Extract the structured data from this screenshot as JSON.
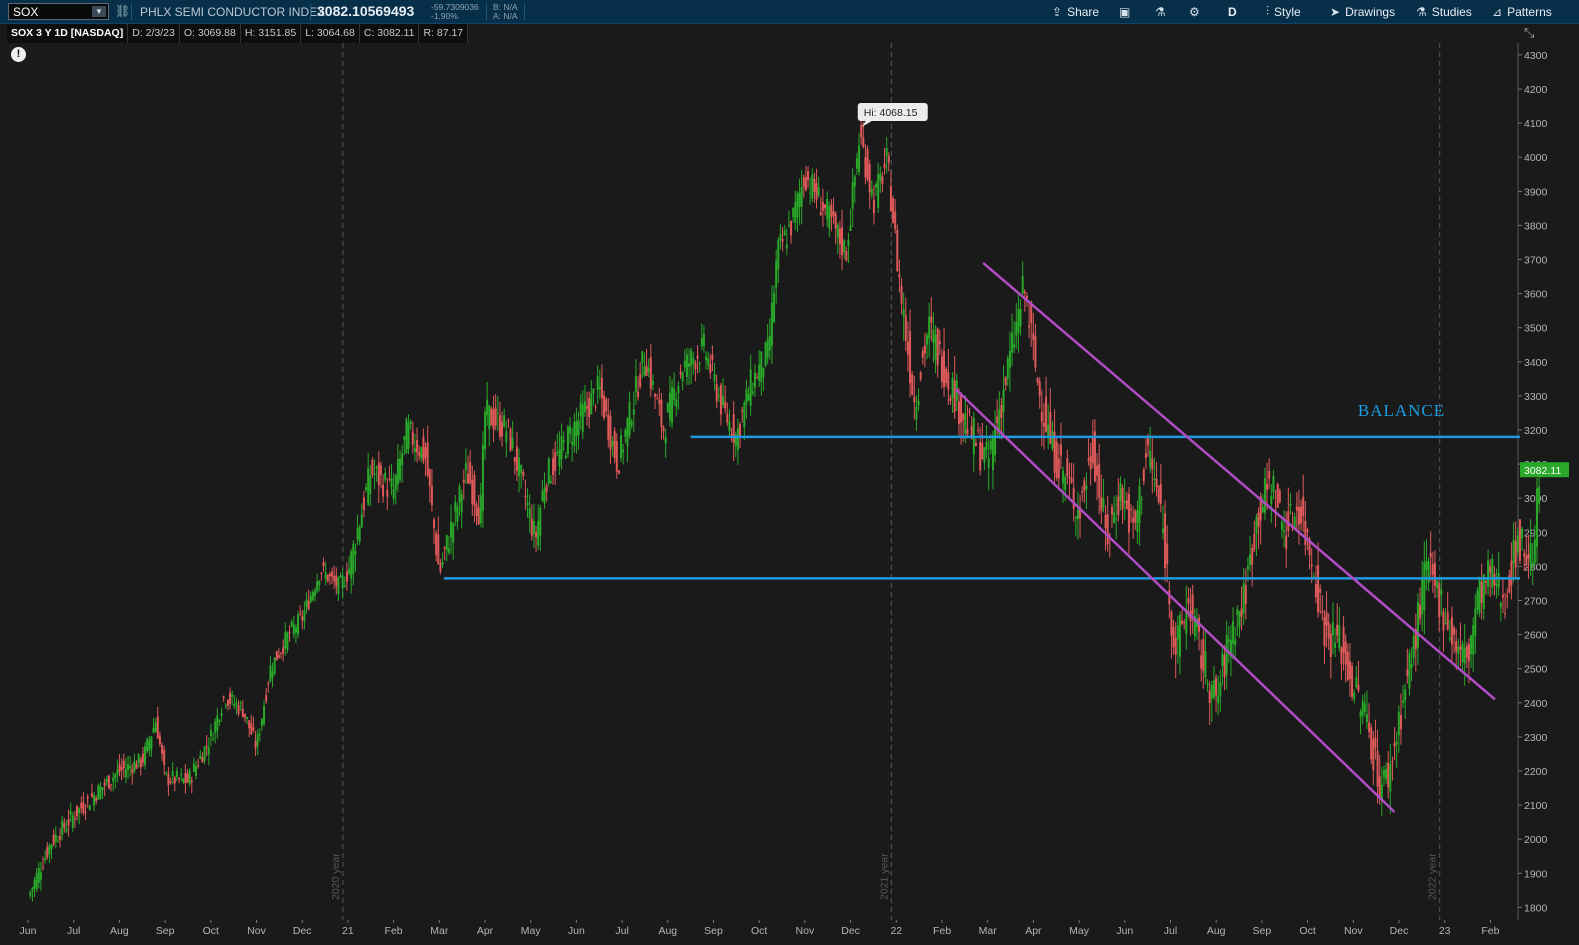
{
  "toolbar": {
    "symbol": "SOX",
    "description": "PHLX SEMI CONDUCTOR INDEX",
    "last": "3082.10569493",
    "change": "-59.7309036",
    "change_pct": "-1.90%",
    "bid": "B: N/A",
    "ask": "A: N/A",
    "share_label": "Share",
    "aggregation": "D",
    "style_label": "Style",
    "drawings_label": "Drawings",
    "studies_label": "Studies",
    "patterns_label": "Patterns",
    "colors": {
      "bar": "#082f4a",
      "up": "#29a829",
      "down": "#e05a5a",
      "level": "#1e9be0",
      "channel": "#b04cc4"
    }
  },
  "info_bar": {
    "title": "SOX 3 Y 1D [NASDAQ]",
    "date": "D: 2/3/23",
    "open": "O: 3069.88",
    "high": "H: 3151.85",
    "low": "L: 3064.68",
    "close": "C: 3082.11",
    "range": "R: 87.17"
  },
  "chart_data": {
    "type": "candlestick",
    "y_ticks": [
      1800,
      1900,
      2000,
      2100,
      2200,
      2300,
      2400,
      2500,
      2600,
      2700,
      2800,
      2900,
      3000,
      3100,
      3200,
      3300,
      3400,
      3500,
      3600,
      3700,
      3800,
      3900,
      4000,
      4100,
      4200,
      4300
    ],
    "ylim": [
      1763,
      4335
    ],
    "x_labels": [
      "Jun",
      "Jul",
      "Aug",
      "Sep",
      "Oct",
      "Nov",
      "Dec",
      "21",
      "Feb",
      "Mar",
      "Apr",
      "May",
      "Jun",
      "Jul",
      "Aug",
      "Sep",
      "Oct",
      "Nov",
      "Dec",
      "22",
      "Feb",
      "Mar",
      "Apr",
      "May",
      "Jun",
      "Jul",
      "Aug",
      "Sep",
      "Oct",
      "Nov",
      "Dec",
      "23",
      "Feb"
    ],
    "year_markers": [
      {
        "month_index": 7,
        "label": "2020 year"
      },
      {
        "month_index": 19,
        "label": "2021 year"
      },
      {
        "month_index": 31,
        "label": "2022 year"
      }
    ],
    "price_path": [
      [
        0,
        1830
      ],
      [
        0.5,
        1990
      ],
      [
        1,
        2070
      ],
      [
        1.6,
        2150
      ],
      [
        2,
        2200
      ],
      [
        2.5,
        2230
      ],
      [
        2.8,
        2350
      ],
      [
        3,
        2180
      ],
      [
        3.5,
        2170
      ],
      [
        4,
        2300
      ],
      [
        4.3,
        2420
      ],
      [
        4.7,
        2380
      ],
      [
        5,
        2270
      ],
      [
        5.3,
        2500
      ],
      [
        5.7,
        2600
      ],
      [
        6,
        2650
      ],
      [
        6.4,
        2790
      ],
      [
        6.8,
        2740
      ],
      [
        7,
        2780
      ],
      [
        7.5,
        3080
      ],
      [
        8,
        3020
      ],
      [
        8.3,
        3200
      ],
      [
        8.7,
        3120
      ],
      [
        9,
        2780
      ],
      [
        9.3,
        2930
      ],
      [
        9.6,
        3080
      ],
      [
        9.9,
        2950
      ],
      [
        10,
        3250
      ],
      [
        10.5,
        3200
      ],
      [
        10.8,
        3050
      ],
      [
        11.1,
        2880
      ],
      [
        11.3,
        3050
      ],
      [
        12,
        3220
      ],
      [
        12.5,
        3320
      ],
      [
        12.9,
        3100
      ],
      [
        13.5,
        3420
      ],
      [
        13.9,
        3200
      ],
      [
        14.3,
        3380
      ],
      [
        14.8,
        3440
      ],
      [
        15.2,
        3260
      ],
      [
        15.5,
        3180
      ],
      [
        15.8,
        3330
      ],
      [
        16.2,
        3430
      ],
      [
        16.4,
        3720
      ],
      [
        16.7,
        3800
      ],
      [
        17,
        3950
      ],
      [
        17.5,
        3830
      ],
      [
        17.9,
        3720
      ],
      [
        18.2,
        4068
      ],
      [
        18.5,
        3870
      ],
      [
        18.8,
        3990
      ],
      [
        19.1,
        3600
      ],
      [
        19.4,
        3280
      ],
      [
        19.7,
        3500
      ],
      [
        20,
        3400
      ],
      [
        20.3,
        3300
      ],
      [
        20.6,
        3200
      ],
      [
        21,
        3100
      ],
      [
        21.4,
        3350
      ],
      [
        21.8,
        3620
      ],
      [
        22.1,
        3330
      ],
      [
        22.4,
        3150
      ],
      [
        22.8,
        3030
      ],
      [
        23,
        2960
      ],
      [
        23.3,
        3150
      ],
      [
        23.6,
        2880
      ],
      [
        23.9,
        3020
      ],
      [
        24.2,
        2900
      ],
      [
        24.5,
        3150
      ],
      [
        24.8,
        2950
      ],
      [
        25.1,
        2550
      ],
      [
        25.4,
        2700
      ],
      [
        25.7,
        2520
      ],
      [
        26,
        2400
      ],
      [
        26.3,
        2600
      ],
      [
        26.6,
        2700
      ],
      [
        26.9,
        2950
      ],
      [
        27.2,
        3050
      ],
      [
        27.5,
        2900
      ],
      [
        27.8,
        2980
      ],
      [
        28.1,
        2820
      ],
      [
        28.4,
        2600
      ],
      [
        28.7,
        2580
      ],
      [
        29,
        2450
      ],
      [
        29.3,
        2350
      ],
      [
        29.6,
        2150
      ],
      [
        29.8,
        2200
      ],
      [
        30,
        2350
      ],
      [
        30.3,
        2550
      ],
      [
        30.6,
        2800
      ],
      [
        30.9,
        2700
      ],
      [
        31.2,
        2580
      ],
      [
        31.5,
        2520
      ],
      [
        31.7,
        2700
      ],
      [
        32,
        2780
      ],
      [
        32.3,
        2700
      ],
      [
        32.6,
        2880
      ],
      [
        32.9,
        2820
      ],
      [
        33.1,
        3082
      ]
    ],
    "annotations": [
      {
        "label": "Hi: 4068.15",
        "month": 18.2,
        "price": 4068
      },
      {
        "label": "BALANCE",
        "month": 29.1,
        "price": 3230
      }
    ],
    "levels": [
      {
        "name": "upper-balance-line",
        "price": 3180,
        "from_month": 14.5
      },
      {
        "name": "lower-balance-line",
        "price": 2765,
        "from_month": 9.1
      }
    ],
    "channel": [
      {
        "name": "channel-upper",
        "from": [
          20.9,
          3690
        ],
        "to": [
          32.1,
          2410
        ]
      },
      {
        "name": "channel-lower",
        "from": [
          20.3,
          3320
        ],
        "to": [
          29.9,
          2080
        ]
      }
    ],
    "current_price_label": "3082.11"
  }
}
